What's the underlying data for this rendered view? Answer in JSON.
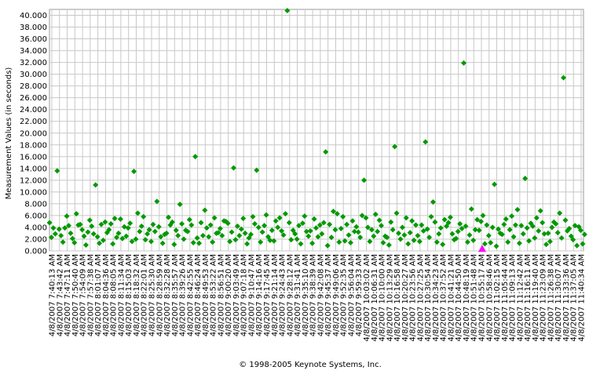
{
  "chart_data": {
    "type": "scatter",
    "y_label": "Measurement Values (in seconds)",
    "footer": "© 1998-2005 Keynote Systems, Inc.",
    "categories": [
      "4/8/2007 7:40:13 AM",
      "4/8/2007 7:43:42 AM",
      "4/8/2007 7:47:11 AM",
      "4/8/2007 7:50:40 AM",
      "4/8/2007 7:54:09 AM",
      "4/8/2007 7:57:38 AM",
      "4/8/2007 8:01:07 AM",
      "4/8/2007 8:04:36 AM",
      "4/8/2007 8:08:05 AM",
      "4/8/2007 8:11:34 AM",
      "4/8/2007 8:15:03 AM",
      "4/8/2007 8:18:32 AM",
      "4/8/2007 8:22:01 AM",
      "4/8/2007 8:25:30 AM",
      "4/8/2007 8:28:59 AM",
      "4/8/2007 8:32:28 AM",
      "4/8/2007 8:35:57 AM",
      "4/8/2007 8:39:26 AM",
      "4/8/2007 8:42:55 AM",
      "4/8/2007 8:46:24 AM",
      "4/8/2007 8:49:53 AM",
      "4/8/2007 8:53:22 AM",
      "4/8/2007 8:56:51 AM",
      "4/8/2007 9:00:20 AM",
      "4/8/2007 9:03:49 AM",
      "4/8/2007 9:07:18 AM",
      "4/8/2007 9:10:47 AM",
      "4/8/2007 9:14:16 AM",
      "4/8/2007 9:17:45 AM",
      "4/8/2007 9:21:14 AM",
      "4/8/2007 9:24:43 AM",
      "4/8/2007 9:28:12 AM",
      "4/8/2007 9:31:41 AM",
      "4/8/2007 9:35:10 AM",
      "4/8/2007 9:38:39 AM",
      "4/8/2007 9:42:08 AM",
      "4/8/2007 9:45:37 AM",
      "4/8/2007 9:49:06 AM",
      "4/8/2007 9:52:35 AM",
      "4/8/2007 9:56:04 AM",
      "4/8/2007 9:59:33 AM",
      "4/8/2007 10:03:02 AM",
      "4/8/2007 10:06:31 AM",
      "4/8/2007 10:10:00 AM",
      "4/8/2007 10:13:29 AM",
      "4/8/2007 10:16:58 AM",
      "4/8/2007 10:20:27 AM",
      "4/8/2007 10:23:56 AM",
      "4/8/2007 10:27:25 AM",
      "4/8/2007 10:30:54 AM",
      "4/8/2007 10:34:23 AM",
      "4/8/2007 10:37:52 AM",
      "4/8/2007 10:41:21 AM",
      "4/8/2007 10:44:50 AM",
      "4/8/2007 10:48:19 AM",
      "4/8/2007 10:51:48 AM",
      "4/8/2007 10:55:17 AM",
      "4/8/2007 10:58:46 AM",
      "4/8/2007 11:02:15 AM",
      "4/8/2007 11:05:44 AM",
      "4/8/2007 11:09:13 AM",
      "4/8/2007 11:12:42 AM",
      "4/8/2007 11:16:11 AM",
      "4/8/2007 11:19:40 AM",
      "4/8/2007 11:23:09 AM",
      "4/8/2007 11:26:38 AM",
      "4/8/2007 11:30:07 AM",
      "4/8/2007 11:33:36 AM",
      "4/8/2007 11:37:05 AM",
      "4/8/2007 11:40:34 AM"
    ],
    "series": [
      {
        "color": "#009900",
        "marker": "diamond",
        "values": [
          4.8,
          13.6,
          3.9,
          2.1,
          4.5,
          3.2,
          11.2,
          1.8,
          4.6,
          3.0,
          2.5,
          13.5,
          4.2,
          3.6,
          8.4,
          2.8,
          4.9,
          7.9,
          3.3,
          16.0,
          2.6,
          4.4,
          3.1,
          5.0,
          14.1,
          3.7,
          2.2,
          13.7,
          4.3,
          3.5,
          5.6,
          40.8,
          2.9,
          4.7,
          3.4,
          2.4,
          16.8,
          6.7,
          3.8,
          2.7,
          4.1,
          12.0,
          3.6,
          5.2,
          2.3,
          17.7,
          4.0,
          3.1,
          2.6,
          18.5,
          8.3,
          3.9,
          4.8,
          2.1,
          31.9,
          7.1,
          3.5,
          4.4,
          11.3,
          2.8,
          3.6,
          7.0,
          12.3,
          4.2,
          6.8,
          3.0,
          4.6,
          29.4,
          2.5,
          4.1
        ]
      },
      {
        "color": "#009900",
        "marker": "diamond",
        "values": [
          2.3,
          3.7,
          5.9,
          1.4,
          3.6,
          5.2,
          2.4,
          4.9,
          1.2,
          5.4,
          3.9,
          2.0,
          5.8,
          1.6,
          4.1,
          3.0,
          1.1,
          4.6,
          5.3,
          2.2,
          6.9,
          1.5,
          3.8,
          4.7,
          1.9,
          5.5,
          2.8,
          4.0,
          6.1,
          1.7,
          3.4,
          4.8,
          2.0,
          5.9,
          1.3,
          4.4,
          0.9,
          3.6,
          5.8,
          1.4,
          3.2,
          5.6,
          2.5,
          4.3,
          1.0,
          6.4,
          2.7,
          5.1,
          1.6,
          3.7,
          4.9,
          1.1,
          5.7,
          3.3,
          4.2,
          1.8,
          5.0,
          2.6,
          0.8,
          4.5,
          5.9,
          1.3,
          3.9,
          2.2,
          4.8,
          1.6,
          3.1,
          5.2,
          1.9,
          3.5
        ]
      },
      {
        "color": "#009900",
        "marker": "diamond",
        "values": [
          3.9,
          2.6,
          4.3,
          6.3,
          2.5,
          4.2,
          1.3,
          3.1,
          5.5,
          2.1,
          4.7,
          6.4,
          1.9,
          4.5,
          2.4,
          5.7,
          3.5,
          2.0,
          4.4,
          1.3,
          3.9,
          5.6,
          2.6,
          1.6,
          4.2,
          3.0,
          5.8,
          1.5,
          2.4,
          5.1,
          2.7,
          1.9,
          4.3,
          3.3,
          5.4,
          2.9,
          4.5,
          6.3,
          1.7,
          5.1,
          2.3,
          4.0,
          6.2,
          1.4,
          4.9,
          3.0,
          5.6,
          1.8,
          4.4,
          2.3,
          1.5,
          5.3,
          2.9,
          4.6,
          1.5,
          3.6,
          6.0,
          1.4,
          3.7,
          5.4,
          2.4,
          4.3,
          1.7,
          5.6,
          2.9,
          4.0,
          6.4,
          3.4,
          4.3,
          1.2
        ]
      },
      {
        "color": "#009900",
        "marker": "diamond",
        "values": [
          2.9,
          1.5,
          3.0,
          4.4,
          1.0,
          2.9,
          4.5,
          3.6,
          2.3,
          4.1,
          1.6,
          3.3,
          2.9,
          3.3,
          1.3,
          4.4,
          2.6,
          3.5,
          1.4,
          4.8,
          2.4,
          3.0,
          5.1,
          3.2,
          2.6,
          1.2,
          4.6,
          3.2,
          1.8,
          4.0,
          6.3,
          3.5,
          1.2,
          2.5,
          3.9,
          4.8,
          2.3,
          1.5,
          4.5,
          3.3,
          6.0,
          1.6,
          3.3,
          2.5,
          3.6,
          2.0,
          1.2,
          4.4,
          3.4,
          5.8,
          2.9,
          4.2,
          1.9,
          3.8,
          2.7,
          5.3,
          1.2,
          4.0,
          3.0,
          1.5,
          4.4,
          2.9,
          4.7,
          3.4,
          1.1,
          4.9,
          2.2,
          3.8,
          0.9,
          2.8
        ]
      },
      {
        "color": "#ff00ff",
        "marker": "triangle",
        "values": [
          null,
          null,
          null,
          null,
          null,
          null,
          null,
          null,
          null,
          null,
          null,
          null,
          null,
          null,
          null,
          null,
          null,
          null,
          null,
          null,
          null,
          null,
          null,
          null,
          null,
          null,
          null,
          null,
          null,
          null,
          null,
          null,
          null,
          null,
          null,
          null,
          null,
          null,
          null,
          null,
          null,
          null,
          null,
          null,
          null,
          null,
          null,
          null,
          null,
          null,
          null,
          null,
          null,
          null,
          null,
          null,
          0.1,
          null,
          null,
          null,
          null,
          null,
          null,
          null,
          null,
          null,
          null,
          null,
          null,
          null
        ]
      }
    ],
    "ylim": [
      0,
      41
    ],
    "yticks": [
      {
        "value": 0,
        "label": "0.000"
      },
      {
        "value": 2,
        "label": "2.000"
      },
      {
        "value": 4,
        "label": "4.000"
      },
      {
        "value": 6,
        "label": "6.000"
      },
      {
        "value": 8,
        "label": "8.000"
      },
      {
        "value": 10,
        "label": "10.000"
      },
      {
        "value": 12,
        "label": "12.000"
      },
      {
        "value": 14,
        "label": "14.000"
      },
      {
        "value": 16,
        "label": "16.000"
      },
      {
        "value": 18,
        "label": "18.000"
      },
      {
        "value": 20,
        "label": "20.000"
      },
      {
        "value": 22,
        "label": "22.000"
      },
      {
        "value": 24,
        "label": "24.000"
      },
      {
        "value": 26,
        "label": "26.000"
      },
      {
        "value": 28,
        "label": "28.000"
      },
      {
        "value": 30,
        "label": "30.000"
      },
      {
        "value": 32,
        "label": "32.000"
      },
      {
        "value": 34,
        "label": "34.000"
      },
      {
        "value": 36,
        "label": "36.000"
      },
      {
        "value": 38,
        "label": "38.000"
      },
      {
        "value": 40,
        "label": "40.000"
      }
    ],
    "grid": true
  }
}
